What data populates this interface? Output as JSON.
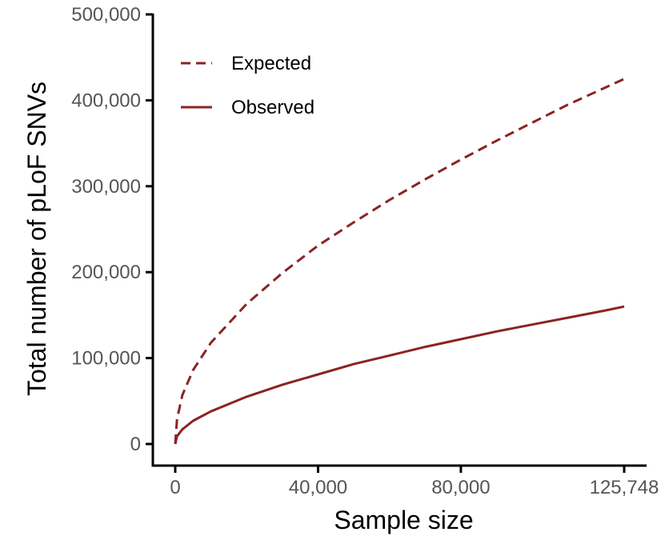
{
  "chart_data": {
    "type": "line",
    "title": "",
    "xlabel": "Sample size",
    "ylabel": "Total number of pLoF SNVs",
    "xlim": [
      0,
      125748
    ],
    "ylim": [
      0,
      500000
    ],
    "x_ticks": [
      0,
      40000,
      80000,
      125748
    ],
    "x_tick_labels": [
      "0",
      "40,000",
      "80,000",
      "125,748"
    ],
    "y_ticks": [
      0,
      100000,
      200000,
      300000,
      400000,
      500000
    ],
    "y_tick_labels": [
      "0",
      "100,000",
      "200,000",
      "300,000",
      "400,000",
      "500,000"
    ],
    "grid": false,
    "legend_position": "top-left",
    "series": [
      {
        "name": "Expected",
        "style": "dashed",
        "color": "#8B2323",
        "x": [
          0,
          500,
          2000,
          5000,
          10000,
          20000,
          30000,
          40000,
          50000,
          60000,
          70000,
          80000,
          90000,
          100000,
          110000,
          120000,
          125748
        ],
        "y": [
          0,
          29000,
          57000,
          86000,
          118000,
          163000,
          199000,
          231000,
          258000,
          284000,
          308000,
          331000,
          353000,
          374000,
          395000,
          414000,
          425000
        ]
      },
      {
        "name": "Observed",
        "style": "solid",
        "color": "#8B2323",
        "x": [
          0,
          500,
          2000,
          5000,
          10000,
          20000,
          30000,
          40000,
          50000,
          60000,
          70000,
          80000,
          90000,
          100000,
          110000,
          120000,
          125748
        ],
        "y": [
          0,
          9000,
          17000,
          27000,
          38000,
          55000,
          69000,
          81000,
          93000,
          103000,
          113000,
          122000,
          131000,
          139000,
          147000,
          155000,
          160000
        ]
      }
    ]
  }
}
